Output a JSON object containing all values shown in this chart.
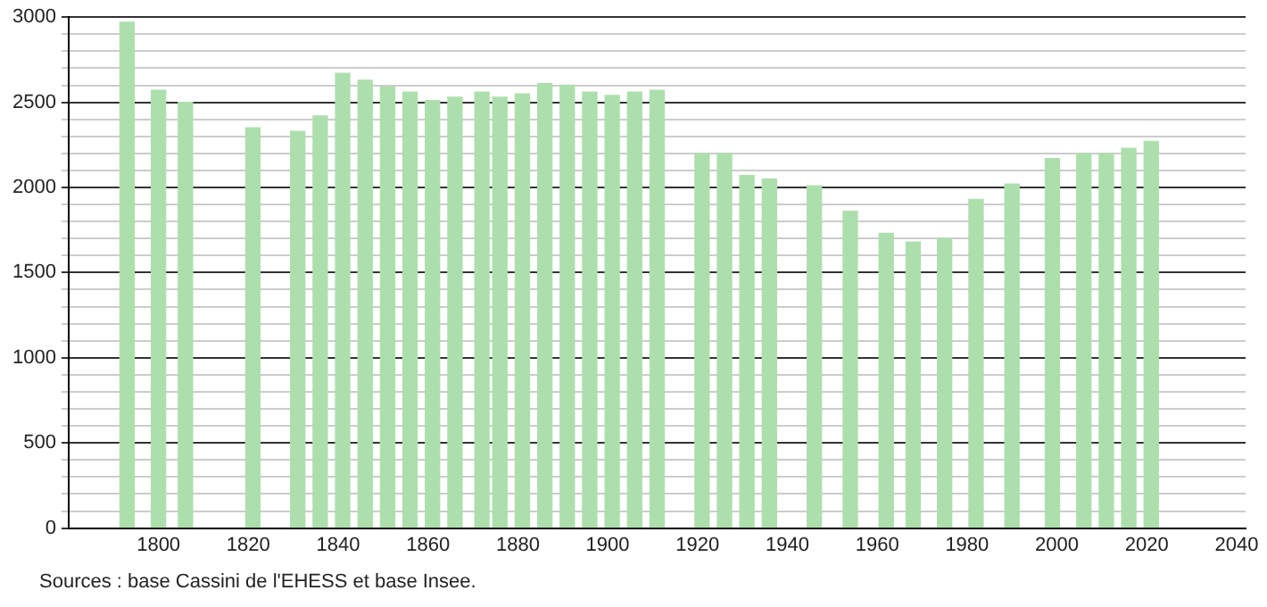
{
  "chart_data": {
    "type": "bar",
    "x": [
      1793,
      1800,
      1806,
      1821,
      1831,
      1836,
      1841,
      1846,
      1851,
      1856,
      1861,
      1866,
      1872,
      1876,
      1881,
      1886,
      1891,
      1896,
      1901,
      1906,
      1911,
      1921,
      1926,
      1931,
      1936,
      1946,
      1954,
      1962,
      1968,
      1975,
      1982,
      1990,
      1999,
      2006,
      2011,
      2016,
      2021
    ],
    "values": [
      2970,
      2570,
      2500,
      2350,
      2330,
      2420,
      2670,
      2630,
      2590,
      2560,
      2510,
      2530,
      2560,
      2530,
      2550,
      2610,
      2600,
      2560,
      2540,
      2560,
      2570,
      2200,
      2200,
      2070,
      2050,
      2010,
      1860,
      1730,
      1680,
      1700,
      1930,
      2020,
      2170,
      2200,
      2200,
      2230,
      2270
    ],
    "color": "#addfad",
    "xlim": [
      1780,
      2042
    ],
    "xticks": [
      1800,
      1820,
      1840,
      1860,
      1880,
      1900,
      1920,
      1940,
      1960,
      1980,
      2000,
      2020,
      2040
    ],
    "ylim": [
      0,
      3000
    ],
    "yticks": [
      0,
      {
        "value": 100,
        "label": null
      },
      {
        "value": 200,
        "label": null
      },
      {
        "value": 300,
        "label": null
      },
      {
        "value": 400,
        "label": null
      },
      500,
      {
        "value": 600,
        "label": null
      },
      {
        "value": 700,
        "label": null
      },
      {
        "value": 800,
        "label": null
      },
      {
        "value": 900,
        "label": null
      },
      1000,
      {
        "value": 1100,
        "label": null
      },
      {
        "value": 1200,
        "label": null
      },
      {
        "value": 1300,
        "label": null
      },
      {
        "value": 1400,
        "label": null
      },
      1500,
      {
        "value": 1600,
        "label": null
      },
      {
        "value": 1700,
        "label": null
      },
      {
        "value": 1800,
        "label": null
      },
      {
        "value": 1900,
        "label": null
      },
      2000,
      {
        "value": 2100,
        "label": null
      },
      {
        "value": 2200,
        "label": null
      },
      {
        "value": 2300,
        "label": null
      },
      {
        "value": 2400,
        "label": null
      },
      2500,
      {
        "value": 2600,
        "label": null
      },
      {
        "value": 2700,
        "label": null
      },
      {
        "value": 2800,
        "label": null
      },
      {
        "value": 2900,
        "label": null
      },
      3000
    ],
    "grid": "y",
    "annotations": [
      "Sources : base Cassini de l'EHESS et base Insee."
    ]
  }
}
